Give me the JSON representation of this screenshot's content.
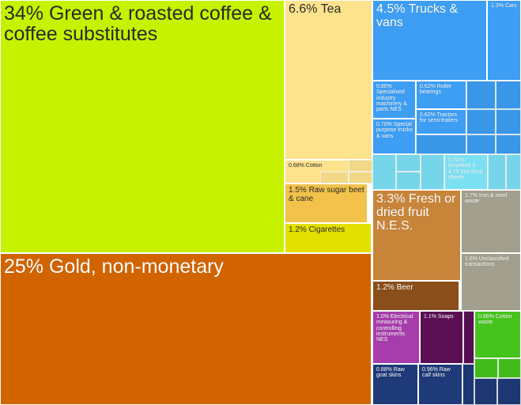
{
  "chart_data": {
    "type": "treemap",
    "title": "",
    "items": [
      {
        "label": "34% Green & roasted coffee & coffee substitutes",
        "share": 34,
        "color": "#c6f200"
      },
      {
        "label": "25% Gold, non-monetary",
        "share": 25,
        "color": "#d26400"
      },
      {
        "label": "6.6% Tea",
        "share": 6.6,
        "color": "#fde38d"
      },
      {
        "label": "0.68% Cotton",
        "share": 0.68,
        "color": "#fde38d"
      },
      {
        "label": "1.5% Raw sugar beet & cane",
        "share": 1.5,
        "color": "#f2c24a"
      },
      {
        "label": "1.2% Cigarettes",
        "share": 1.2,
        "color": "#e3e000"
      },
      {
        "label": "4.5% Trucks & vans",
        "share": 4.5,
        "color": "#3d9ef3"
      },
      {
        "label": "1.3% Cars",
        "share": 1.3,
        "color": "#3d9ef3"
      },
      {
        "label": "0.80% Specialised industry machinery & parts NES",
        "share": 0.8,
        "color": "#3d9ef3"
      },
      {
        "label": "0.62% Roller bearings",
        "share": 0.62,
        "color": "#3d9ef3"
      },
      {
        "label": "0.62% Tractors for semi-trailers",
        "share": 0.62,
        "color": "#3d9ef3"
      },
      {
        "label": "0.70% Special purpose trucks & vans",
        "share": 0.7,
        "color": "#3d9ef3"
      },
      {
        "label": "0.71% Ionylated 3-4.75 mm thick sheets",
        "share": 0.71,
        "color": "#7ce0f4"
      },
      {
        "label": "3.3% Fresh or dried fruit N.E.S.",
        "share": 3.3,
        "color": "#c8853a"
      },
      {
        "label": "1.2% Beer",
        "share": 1.2,
        "color": "#8a4e1a"
      },
      {
        "label": "1.7% Iron & steel waste",
        "share": 1.7,
        "color": "#a39f8e"
      },
      {
        "label": "1.6% Unclassified transactions",
        "share": 1.6,
        "color": "#a39f8e"
      },
      {
        "label": "1.0% Electrical measuring & controlling instruments NES",
        "share": 1.0,
        "color": "#a73cab"
      },
      {
        "label": "1.1% Soaps",
        "share": 1.1,
        "color": "#5a0f55"
      },
      {
        "label": "0.86% Cotton waste",
        "share": 0.86,
        "color": "#46c41d"
      },
      {
        "label": "0.88% Raw goat skins",
        "share": 0.88,
        "color": "#1f3a78"
      },
      {
        "label": "0.96% Raw calf skins",
        "share": 0.96,
        "color": "#1f3a78"
      }
    ]
  }
}
